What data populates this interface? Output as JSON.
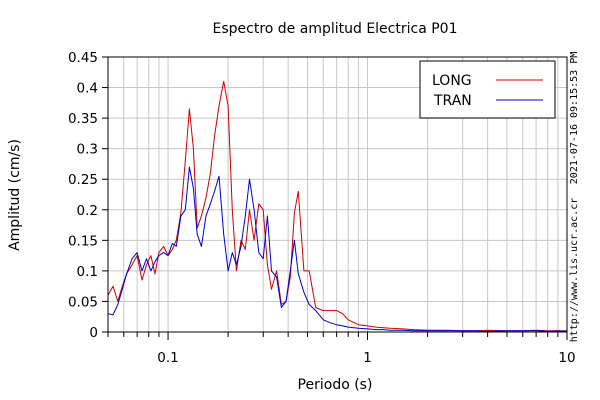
{
  "chart_data": {
    "type": "line",
    "title": "Espectro de amplitud Electrica P01",
    "xlabel": "Periodo (s)",
    "ylabel": "Amplitud (cm/s)",
    "xscale": "log",
    "xlim": [
      0.05,
      10
    ],
    "ylim": [
      0,
      0.45
    ],
    "x_tick_labels": [
      {
        "value": 0.1,
        "label": "0.1"
      },
      {
        "value": 1,
        "label": "1"
      },
      {
        "value": 10,
        "label": "10"
      }
    ],
    "y_ticks": [
      0,
      0.05,
      0.1,
      0.15,
      0.2,
      0.25,
      0.3,
      0.35,
      0.4,
      0.45
    ],
    "y_tick_labels": [
      "0",
      "0.05",
      "0.1",
      "0.15",
      "0.2",
      "0.25",
      "0.3",
      "0.35",
      "0.4",
      "0.45"
    ],
    "grid": true,
    "legend": {
      "position": "top-right"
    },
    "series": [
      {
        "name": "LONG",
        "color": "#cc0000",
        "x": [
          0.05,
          0.053,
          0.056,
          0.059,
          0.062,
          0.066,
          0.07,
          0.074,
          0.078,
          0.082,
          0.086,
          0.09,
          0.095,
          0.1,
          0.105,
          0.11,
          0.116,
          0.122,
          0.128,
          0.134,
          0.14,
          0.147,
          0.155,
          0.163,
          0.171,
          0.18,
          0.19,
          0.2,
          0.21,
          0.22,
          0.232,
          0.244,
          0.256,
          0.27,
          0.285,
          0.3,
          0.315,
          0.33,
          0.35,
          0.37,
          0.39,
          0.41,
          0.43,
          0.45,
          0.48,
          0.51,
          0.55,
          0.6,
          0.65,
          0.7,
          0.75,
          0.8,
          0.9,
          1.0,
          1.1,
          1.2,
          1.3,
          1.5,
          1.7,
          2.0,
          2.5,
          3.0,
          3.5,
          4.0,
          5.0,
          6.0,
          7.0,
          8.0,
          9.0,
          10.0
        ],
        "values": [
          0.06,
          0.075,
          0.05,
          0.075,
          0.095,
          0.11,
          0.125,
          0.085,
          0.11,
          0.125,
          0.095,
          0.13,
          0.14,
          0.125,
          0.135,
          0.15,
          0.195,
          0.28,
          0.365,
          0.3,
          0.17,
          0.19,
          0.22,
          0.26,
          0.32,
          0.37,
          0.41,
          0.37,
          0.2,
          0.1,
          0.15,
          0.135,
          0.2,
          0.15,
          0.21,
          0.2,
          0.11,
          0.07,
          0.1,
          0.045,
          0.05,
          0.09,
          0.195,
          0.23,
          0.1,
          0.1,
          0.04,
          0.035,
          0.035,
          0.035,
          0.03,
          0.02,
          0.012,
          0.01,
          0.008,
          0.007,
          0.006,
          0.005,
          0.004,
          0.003,
          0.003,
          0.002,
          0.002,
          0.003,
          0.002,
          0.002,
          0.003,
          0.002,
          0.002,
          0.002
        ]
      },
      {
        "name": "TRAN",
        "color": "#0000cc",
        "x": [
          0.05,
          0.053,
          0.056,
          0.059,
          0.062,
          0.066,
          0.07,
          0.074,
          0.078,
          0.082,
          0.086,
          0.09,
          0.095,
          0.1,
          0.105,
          0.11,
          0.116,
          0.122,
          0.128,
          0.134,
          0.14,
          0.147,
          0.155,
          0.163,
          0.171,
          0.18,
          0.19,
          0.2,
          0.21,
          0.22,
          0.232,
          0.244,
          0.256,
          0.27,
          0.285,
          0.3,
          0.315,
          0.33,
          0.35,
          0.37,
          0.39,
          0.41,
          0.43,
          0.45,
          0.48,
          0.51,
          0.55,
          0.6,
          0.65,
          0.7,
          0.75,
          0.8,
          0.9,
          1.0,
          1.1,
          1.2,
          1.3,
          1.5,
          1.7,
          2.0,
          2.5,
          3.0,
          3.5,
          4.0,
          5.0,
          6.0,
          7.0,
          8.0,
          9.0,
          10.0
        ],
        "values": [
          0.03,
          0.028,
          0.045,
          0.07,
          0.095,
          0.12,
          0.13,
          0.1,
          0.12,
          0.1,
          0.115,
          0.125,
          0.13,
          0.125,
          0.145,
          0.14,
          0.19,
          0.2,
          0.27,
          0.235,
          0.16,
          0.14,
          0.19,
          0.21,
          0.23,
          0.255,
          0.16,
          0.1,
          0.13,
          0.11,
          0.14,
          0.19,
          0.25,
          0.2,
          0.13,
          0.12,
          0.19,
          0.1,
          0.09,
          0.04,
          0.05,
          0.1,
          0.15,
          0.095,
          0.065,
          0.045,
          0.035,
          0.02,
          0.015,
          0.012,
          0.01,
          0.008,
          0.006,
          0.005,
          0.004,
          0.004,
          0.003,
          0.003,
          0.002,
          0.002,
          0.002,
          0.002,
          0.002,
          0.001,
          0.002,
          0.002,
          0.002,
          0.001,
          0.002,
          0.001
        ]
      }
    ]
  },
  "side_labels": {
    "timestamp": "2021-07-16 09:15:53 PM",
    "url": "http://www.lis.ucr.ac.cr"
  }
}
